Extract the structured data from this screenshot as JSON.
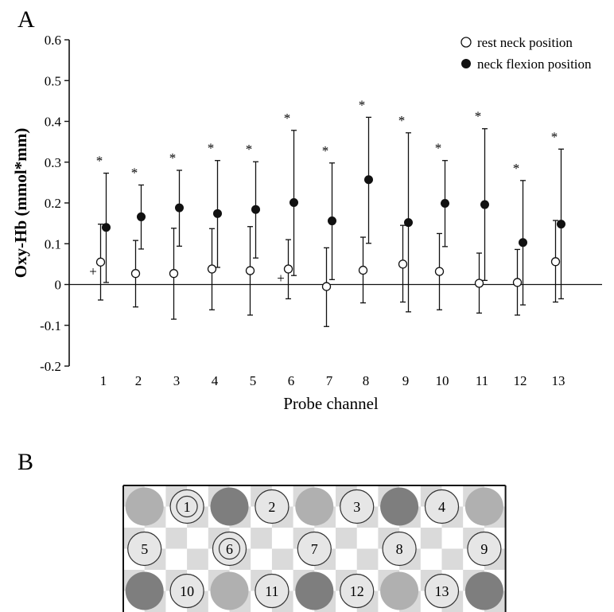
{
  "panel_a_label": "A",
  "panel_b_label": "B",
  "chart_data": {
    "type": "scatter",
    "title": "",
    "xlabel": "Probe channel",
    "ylabel": "Oxy-Hb (mmol*mm)",
    "ylim": [
      -0.2,
      0.6
    ],
    "yticks": [
      "-0.2",
      "-0.1",
      "0",
      "0.1",
      "0.2",
      "0.3",
      "0.4",
      "0.5",
      "0.6"
    ],
    "ytick_values": [
      -0.2,
      -0.1,
      0,
      0.1,
      0.2,
      0.3,
      0.4,
      0.5,
      0.6
    ],
    "categories": [
      "1",
      "2",
      "3",
      "4",
      "5",
      "6",
      "7",
      "8",
      "9",
      "10",
      "11",
      "12",
      "13"
    ],
    "grid": false,
    "legend_position": "top-right",
    "series": [
      {
        "name": "rest neck position",
        "marker": "open-circle",
        "values": [
          0.055,
          0.027,
          0.027,
          0.038,
          0.034,
          0.038,
          -0.005,
          0.035,
          0.05,
          0.032,
          0.003,
          0.005,
          0.056
        ],
        "err_high": [
          0.148,
          0.108,
          0.138,
          0.137,
          0.142,
          0.11,
          0.09,
          0.116,
          0.145,
          0.125,
          0.077,
          0.086,
          0.157
        ],
        "err_low": [
          -0.038,
          -0.055,
          -0.085,
          -0.062,
          -0.075,
          -0.035,
          -0.103,
          -0.045,
          -0.043,
          -0.062,
          -0.07,
          -0.075,
          -0.043
        ]
      },
      {
        "name": "neck flexion position",
        "marker": "filled-circle",
        "values": [
          0.14,
          0.166,
          0.188,
          0.174,
          0.184,
          0.201,
          0.156,
          0.257,
          0.152,
          0.199,
          0.196,
          0.103,
          0.148
        ],
        "err_high": [
          0.273,
          0.244,
          0.28,
          0.304,
          0.301,
          0.378,
          0.298,
          0.41,
          0.372,
          0.304,
          0.382,
          0.255,
          0.332
        ],
        "err_low": [
          0.005,
          0.087,
          0.094,
          0.042,
          0.065,
          0.022,
          0.012,
          0.101,
          -0.067,
          0.093,
          0.01,
          -0.05,
          -0.035
        ]
      }
    ],
    "significance_marker": "*",
    "significant_channels": [
      "1",
      "2",
      "3",
      "4",
      "5",
      "6",
      "7",
      "8",
      "9",
      "10",
      "11",
      "12",
      "13"
    ],
    "plus_marker": "+",
    "plus_channels": [
      "1",
      "6"
    ]
  },
  "probe_layout": {
    "rows": [
      [
        {
          "kind": "light"
        },
        {
          "kind": "channel",
          "label": "1",
          "double": true
        },
        {
          "kind": "dark"
        },
        {
          "kind": "channel",
          "label": "2"
        },
        {
          "kind": "light"
        },
        {
          "kind": "channel",
          "label": "3"
        },
        {
          "kind": "dark"
        },
        {
          "kind": "channel",
          "label": "4"
        },
        {
          "kind": "light"
        }
      ],
      [
        {
          "kind": "channel",
          "label": "5"
        },
        {
          "kind": "none"
        },
        {
          "kind": "channel",
          "label": "6",
          "double": true
        },
        {
          "kind": "none"
        },
        {
          "kind": "channel",
          "label": "7"
        },
        {
          "kind": "none"
        },
        {
          "kind": "channel",
          "label": "8"
        },
        {
          "kind": "none"
        },
        {
          "kind": "channel",
          "label": "9"
        }
      ],
      [
        {
          "kind": "dark"
        },
        {
          "kind": "channel",
          "label": "10"
        },
        {
          "kind": "light"
        },
        {
          "kind": "channel",
          "label": "11"
        },
        {
          "kind": "dark"
        },
        {
          "kind": "channel",
          "label": "12"
        },
        {
          "kind": "light"
        },
        {
          "kind": "channel",
          "label": "13"
        },
        {
          "kind": "dark"
        }
      ]
    ]
  },
  "colors": {
    "axis": "#111111",
    "probe_light": "#b0b0b0",
    "probe_dark": "#7e7e7e",
    "channel_fill": "#e6e6e6",
    "checker": "#dadada"
  }
}
